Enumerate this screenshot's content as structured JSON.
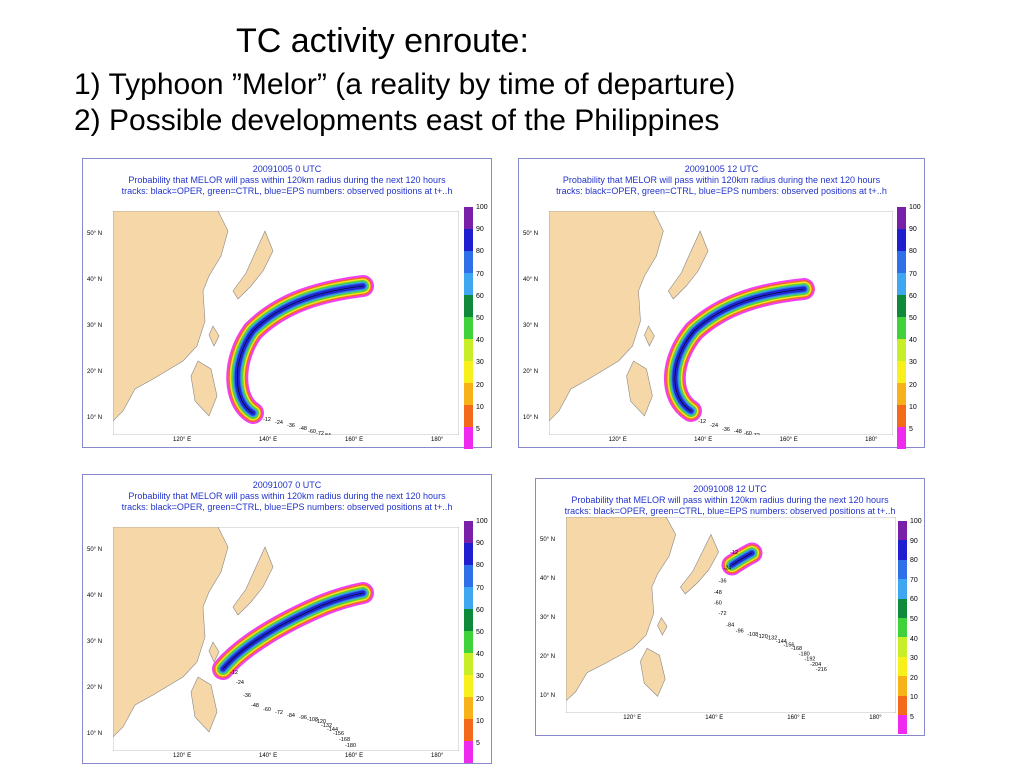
{
  "title": {
    "line1": "TC activity enroute:",
    "line2": "1) Typhoon ”Melor” (a reality by time of departure)",
    "line3": "2) Possible developments east of the Philippines"
  },
  "colorbar": {
    "levels": [
      "100",
      "90",
      "80",
      "70",
      "60",
      "50",
      "40",
      "30",
      "20",
      "10",
      "5"
    ],
    "colors": [
      "#7a1fa8",
      "#1f1fcf",
      "#2f6fe8",
      "#3fa6f2",
      "#0e8a3a",
      "#3fd23a",
      "#c8ee2a",
      "#f7f01c",
      "#f7b21a",
      "#f26a1a",
      "#ef2aef"
    ]
  },
  "axes": {
    "lat_labels": [
      "50° N",
      "40° N",
      "30° N",
      "20° N",
      "10° N"
    ],
    "lon_labels": [
      "120° E",
      "140° E",
      "160° E",
      "180°"
    ]
  },
  "panels": [
    {
      "date": "20091005 0 UTC",
      "subtitle": "Probability that MELOR will pass within 120km radius during the next 120 hours",
      "legend": "tracks: black=OPER, green=CTRL, blue=EPS numbers: observed positions at t+..h",
      "observed_positions": [
        "-12",
        "-24",
        "-36",
        "-48",
        "-60",
        "-72",
        "-84",
        "-96",
        "-108",
        "-120",
        "-132"
      ]
    },
    {
      "date": "20091005 12 UTC",
      "subtitle": "Probability that MELOR will pass within 120km radius during the next 120 hours",
      "legend": "tracks: black=OPER, green=CTRL, blue=EPS numbers: observed positions at t+..h",
      "observed_positions": [
        "-12",
        "-24",
        "-36",
        "-48",
        "-60",
        "-72",
        "-84",
        "-96",
        "-108",
        "-120",
        "-132",
        "-144"
      ]
    },
    {
      "date": "20091007 0 UTC",
      "subtitle": "Probability that MELOR will pass within 120km radius during the next 120 hours",
      "legend": "tracks: black=OPER, green=CTRL, blue=EPS numbers: observed positions at t+..h",
      "observed_positions": [
        "-12",
        "-24",
        "-36",
        "-48",
        "-60",
        "-72",
        "-84",
        "-96",
        "-108",
        "-120",
        "-132",
        "-144",
        "-156",
        "-168",
        "-180"
      ]
    },
    {
      "date": "20091008 12 UTC",
      "subtitle": "Probability that MELOR will pass within 120km radius during the next 120 hours",
      "legend": "tracks: black=OPER, green=CTRL, blue=EPS numbers: observed positions at t+..h",
      "observed_positions": [
        "-12",
        "-24",
        "-36",
        "-48",
        "-60",
        "-72",
        "-84",
        "-96",
        "-108",
        "-120",
        "-132",
        "-144",
        "-156",
        "-168",
        "-180",
        "-192",
        "-204",
        "-216"
      ]
    }
  ]
}
